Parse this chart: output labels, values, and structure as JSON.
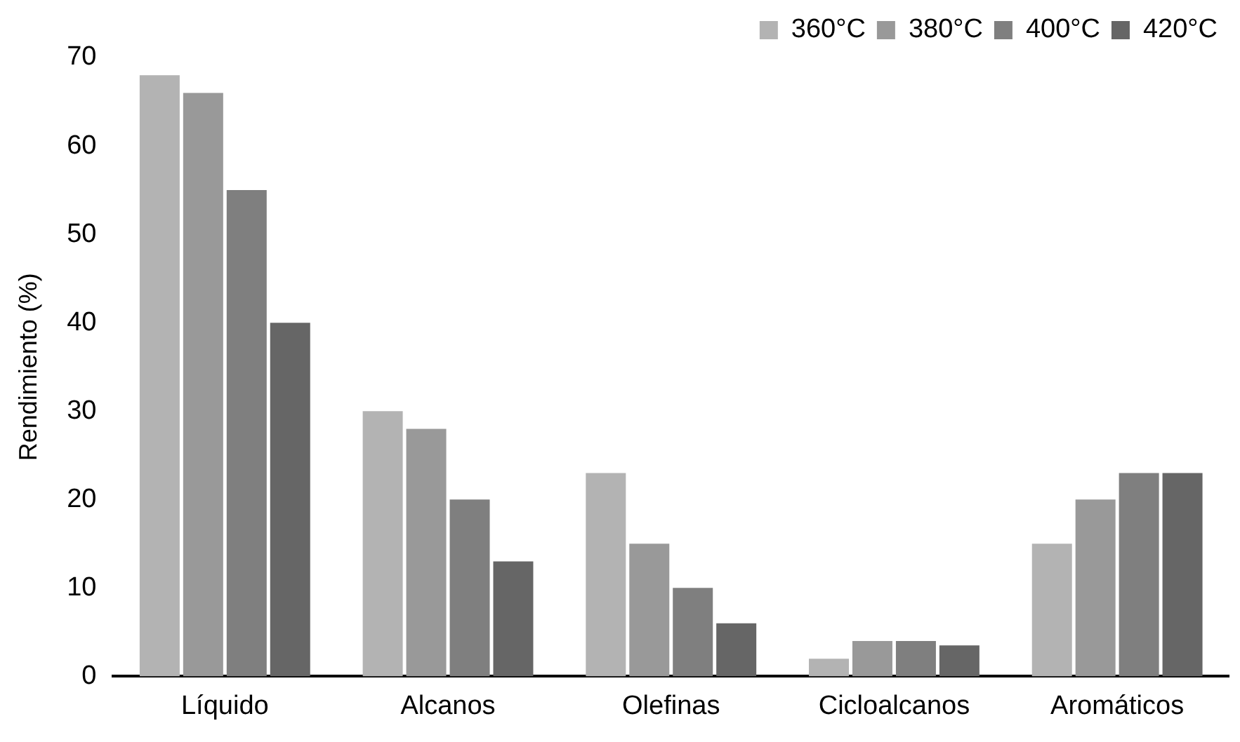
{
  "chart_data": {
    "type": "bar",
    "ylabel": "Rendimiento (%)",
    "categories": [
      "Líquido",
      "Alcanos",
      "Olefinas",
      "Cicloalcanos",
      "Aromáticos"
    ],
    "series": [
      {
        "name": "360°C",
        "color": "#b3b3b3",
        "values": [
          68,
          30,
          23,
          2,
          15
        ]
      },
      {
        "name": "380°C",
        "color": "#999999",
        "values": [
          66,
          28,
          15,
          4,
          20
        ]
      },
      {
        "name": "400°C",
        "color": "#7f7f7f",
        "values": [
          55,
          20,
          10,
          4,
          23
        ]
      },
      {
        "name": "420°C",
        "color": "#666666",
        "values": [
          40,
          13,
          6,
          3.5,
          23
        ]
      }
    ],
    "ylim": [
      0,
      70
    ],
    "yticks": [
      0,
      10,
      20,
      30,
      40,
      50,
      60,
      70
    ],
    "grid": false,
    "legend": "top right"
  }
}
